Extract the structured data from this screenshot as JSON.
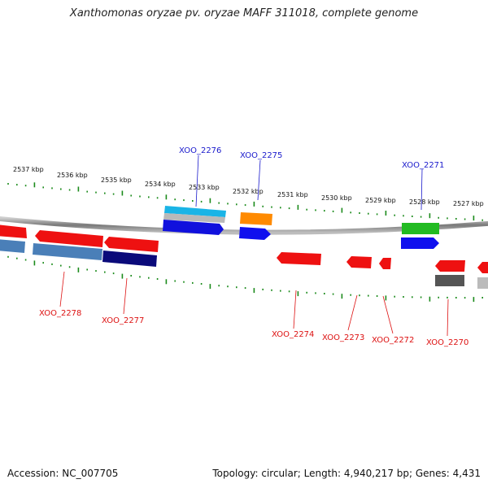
{
  "title": "Xanthomonas oryzae pv. oryzae MAFF 311018, complete genome",
  "footer": {
    "accession": "Accession: NC_007705",
    "summary": "Topology: circular; Length: 4,940,217 bp; Genes: 4,431"
  },
  "colors": {
    "backbone": "#8a8a8a",
    "tick": "#1a8a1a",
    "forward_label": "#1a1acc",
    "reverse_label": "#dd1111"
  },
  "scale_labels": [
    "2537 kbp",
    "2536 kbp",
    "2535 kbp",
    "2534 kbp",
    "2533 kbp",
    "2532 kbp",
    "2531 kbp",
    "2530 kbp",
    "2529 kbp",
    "2528 kbp",
    "2527 kbp"
  ],
  "forward_labels": [
    "XOO_2276",
    "XOO_2275",
    "XOO_2271"
  ],
  "reverse_labels": [
    "XOO_2278",
    "XOO_2277",
    "XOO_2274",
    "XOO_2273",
    "XOO_2272",
    "XOO_2270"
  ]
}
